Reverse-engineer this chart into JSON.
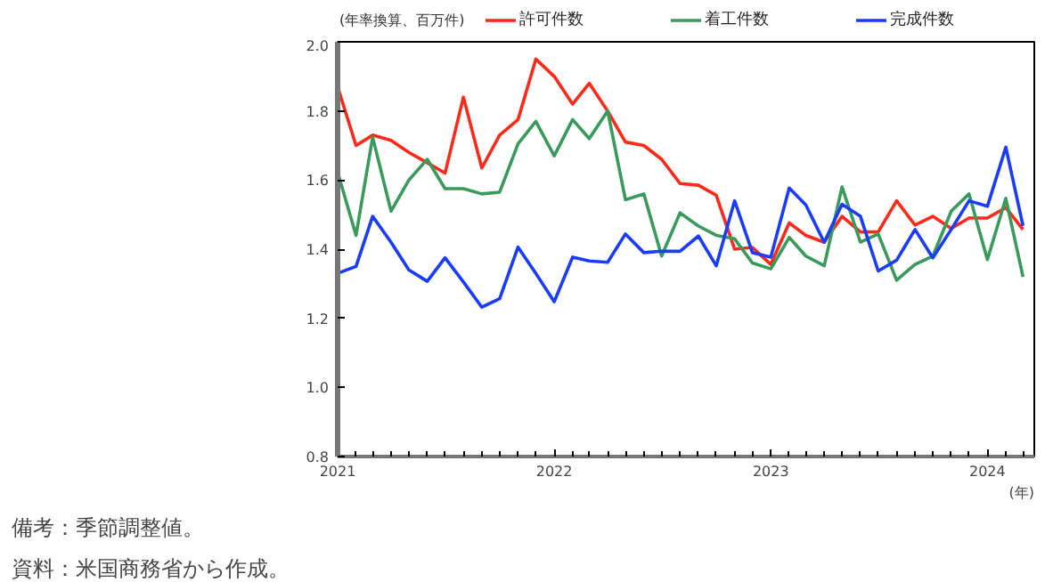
{
  "chart_data": {
    "type": "line",
    "ylabel": "(年率換算、百万件)",
    "xlabel": "(年)",
    "x": [
      "2021-01",
      "2021-02",
      "2021-03",
      "2021-04",
      "2021-05",
      "2021-06",
      "2021-07",
      "2021-08",
      "2021-09",
      "2021-10",
      "2021-11",
      "2021-12",
      "2022-01",
      "2022-02",
      "2022-03",
      "2022-04",
      "2022-05",
      "2022-06",
      "2022-07",
      "2022-08",
      "2022-09",
      "2022-10",
      "2022-11",
      "2022-12",
      "2023-01",
      "2023-02",
      "2023-03",
      "2023-04",
      "2023-05",
      "2023-06",
      "2023-07",
      "2023-08",
      "2023-09",
      "2023-10",
      "2023-11",
      "2023-12",
      "2024-01",
      "2024-02",
      "2024-03"
    ],
    "series": [
      {
        "name": "許可件数",
        "color": "#ff2a1a",
        "values": [
          1.87,
          1.7,
          1.73,
          1.715,
          1.68,
          1.65,
          1.62,
          1.84,
          1.635,
          1.73,
          1.775,
          1.95,
          1.9,
          1.82,
          1.88,
          1.8,
          1.71,
          1.7,
          1.66,
          1.59,
          1.585,
          1.556,
          1.4,
          1.405,
          1.356,
          1.476,
          1.44,
          1.42,
          1.495,
          1.45,
          1.45,
          1.54,
          1.47,
          1.495,
          1.46,
          1.49,
          1.49,
          1.52,
          1.457
        ]
      },
      {
        "name": "着工件数",
        "color": "#3a9a5c",
        "values": [
          1.623,
          1.44,
          1.724,
          1.51,
          1.6,
          1.66,
          1.575,
          1.575,
          1.56,
          1.565,
          1.705,
          1.77,
          1.67,
          1.775,
          1.72,
          1.8,
          1.543,
          1.56,
          1.38,
          1.505,
          1.467,
          1.44,
          1.43,
          1.36,
          1.343,
          1.434,
          1.38,
          1.352,
          1.58,
          1.42,
          1.444,
          1.31,
          1.356,
          1.38,
          1.51,
          1.56,
          1.37,
          1.547,
          1.32
        ]
      },
      {
        "name": "完成件数",
        "color": "#1a3cff",
        "values": [
          1.33,
          1.35,
          1.495,
          1.42,
          1.34,
          1.307,
          1.375,
          1.305,
          1.232,
          1.257,
          1.406,
          1.33,
          1.248,
          1.377,
          1.366,
          1.362,
          1.444,
          1.39,
          1.394,
          1.394,
          1.438,
          1.352,
          1.54,
          1.39,
          1.377,
          1.577,
          1.528,
          1.42,
          1.53,
          1.495,
          1.337,
          1.368,
          1.457,
          1.375,
          1.457,
          1.54,
          1.524,
          1.695,
          1.467
        ]
      }
    ],
    "xlim": [
      "2021-01-01",
      "2024-03-20"
    ],
    "xticks": [
      {
        "value": "2021-01-01",
        "label": "2021"
      },
      {
        "value": "2022-01-01",
        "label": "2022"
      },
      {
        "value": "2023-01-01",
        "label": "2023"
      },
      {
        "value": "2024-01-01",
        "label": "2024"
      }
    ],
    "ylim": [
      0.8,
      2.0
    ],
    "yticks": [
      {
        "value": 0.8,
        "label": "0.8"
      },
      {
        "value": 1.0,
        "label": "1.0"
      },
      {
        "value": 1.2,
        "label": "1.2"
      },
      {
        "value": 1.4,
        "label": "1.4"
      },
      {
        "value": 1.6,
        "label": "1.6"
      },
      {
        "value": 1.8,
        "label": "1.8"
      },
      {
        "value": 2.0,
        "label": "2.0"
      }
    ],
    "grid": false,
    "legend": "top",
    "marker": "none",
    "line_style": "solid",
    "annotations": [
      "備考：季節調整値。",
      "資料：米国商務省から作成。"
    ]
  }
}
